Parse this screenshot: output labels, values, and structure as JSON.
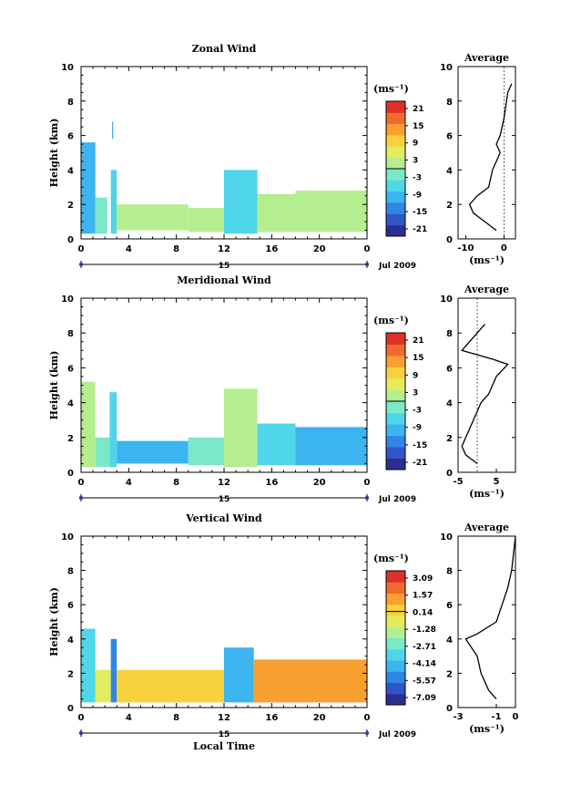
{
  "figure": {
    "x_axis_label": "Local Time",
    "date_label": "Jul 2009",
    "day_marker": "15",
    "y_axis_label": "Height (km)",
    "unit_label": "(ms⁻¹)",
    "average_title": "Average",
    "x_ticks": [
      "0",
      "4",
      "8",
      "12",
      "16",
      "20",
      "0"
    ],
    "y_ticks": [
      "0",
      "2",
      "4",
      "6",
      "8",
      "10"
    ]
  },
  "colorbar_colors": [
    "#2b2f8f",
    "#2f55c8",
    "#2f86e6",
    "#3bb4f0",
    "#4fd6e8",
    "#7be8c8",
    "#b4ee8e",
    "#e2ec5c",
    "#f8d23c",
    "#f8a030",
    "#f06a2e",
    "#e03128"
  ],
  "chart_data": [
    {
      "type": "heatmap",
      "title": "Zonal Wind",
      "xlabel": "",
      "ylabel": "Height (km)",
      "xlim": [
        0,
        24
      ],
      "ylim": [
        0,
        10
      ],
      "colorbar_unit": "(ms⁻¹)",
      "colorbar_ticks": [
        "21",
        "15",
        "9",
        "3",
        "-3",
        "-9",
        "-15",
        "-21"
      ],
      "colorbar_range": [
        -21,
        21
      ],
      "blocks": [
        {
          "t0": 0.0,
          "t1": 1.2,
          "h0": 0.3,
          "h1": 5.6,
          "v": -8
        },
        {
          "t0": 1.2,
          "t1": 2.2,
          "h0": 0.3,
          "h1": 2.4,
          "v": -2
        },
        {
          "t0": 2.5,
          "t1": 3.0,
          "h0": 0.3,
          "h1": 4.0,
          "v": -6
        },
        {
          "t0": 2.6,
          "t1": 2.7,
          "h0": 5.8,
          "h1": 6.8,
          "v": -9
        },
        {
          "t0": 3.0,
          "t1": 9.0,
          "h0": 0.5,
          "h1": 2.0,
          "v": 1
        },
        {
          "t0": 9.0,
          "t1": 12.0,
          "h0": 0.4,
          "h1": 1.8,
          "v": 0
        },
        {
          "t0": 12.0,
          "t1": 14.8,
          "h0": 0.3,
          "h1": 4.0,
          "v": -4
        },
        {
          "t0": 14.8,
          "t1": 18.0,
          "h0": 0.4,
          "h1": 2.6,
          "v": 2
        },
        {
          "t0": 18.0,
          "t1": 24.0,
          "h0": 0.4,
          "h1": 2.8,
          "v": 3
        }
      ],
      "average": {
        "xlim": [
          -12,
          3
        ],
        "xticks": [
          "-10",
          "0"
        ],
        "x": [
          -2,
          -5,
          -8,
          -9,
          -7,
          -4,
          -3,
          -1,
          -2,
          -1,
          0,
          1,
          2
        ],
        "h": [
          0.5,
          1.0,
          1.5,
          2.0,
          2.5,
          3.0,
          4.0,
          5.0,
          5.5,
          6.0,
          7.0,
          8.5,
          9.0
        ]
      }
    },
    {
      "type": "heatmap",
      "title": "Meridional Wind",
      "xlabel": "",
      "ylabel": "Height (km)",
      "xlim": [
        0,
        24
      ],
      "ylim": [
        0,
        10
      ],
      "colorbar_unit": "(ms⁻¹)",
      "colorbar_ticks": [
        "21",
        "15",
        "9",
        "3",
        "-3",
        "-9",
        "-15",
        "-21"
      ],
      "colorbar_range": [
        -21,
        21
      ],
      "blocks": [
        {
          "t0": 0.0,
          "t1": 1.2,
          "h0": 0.3,
          "h1": 5.2,
          "v": 0
        },
        {
          "t0": 1.2,
          "t1": 2.4,
          "h0": 0.3,
          "h1": 2.0,
          "v": -3
        },
        {
          "t0": 2.4,
          "t1": 3.0,
          "h0": 0.3,
          "h1": 4.6,
          "v": -5
        },
        {
          "t0": 3.0,
          "t1": 9.0,
          "h0": 0.5,
          "h1": 1.8,
          "v": -9
        },
        {
          "t0": 9.0,
          "t1": 12.0,
          "h0": 0.4,
          "h1": 2.0,
          "v": -3
        },
        {
          "t0": 12.0,
          "t1": 14.8,
          "h0": 0.3,
          "h1": 4.8,
          "v": 0
        },
        {
          "t0": 14.8,
          "t1": 18.0,
          "h0": 0.4,
          "h1": 2.8,
          "v": -7
        },
        {
          "t0": 18.0,
          "t1": 24.0,
          "h0": 0.4,
          "h1": 2.6,
          "v": -9
        }
      ],
      "average": {
        "xlim": [
          -5,
          10
        ],
        "xticks": [
          "-5",
          "5"
        ],
        "x": [
          0,
          -3,
          -4,
          -3,
          -1,
          1,
          3,
          5,
          8,
          4,
          -4,
          2
        ],
        "h": [
          0.5,
          1.0,
          1.5,
          2.0,
          3.0,
          4.0,
          4.5,
          5.5,
          6.2,
          6.5,
          7.0,
          8.5
        ]
      }
    },
    {
      "type": "heatmap",
      "title": "Vertical Wind",
      "xlabel": "Local Time",
      "ylabel": "Height (km)",
      "xlim": [
        0,
        24
      ],
      "ylim": [
        0,
        10
      ],
      "colorbar_unit": "(ms⁻¹)",
      "colorbar_ticks": [
        "3.09",
        "1.57",
        "0.14",
        "-1.28",
        "-2.71",
        "-4.14",
        "-5.57",
        "-7.09"
      ],
      "colorbar_range": [
        -7.09,
        3.09
      ],
      "blocks": [
        {
          "t0": 0.0,
          "t1": 1.2,
          "h0": 0.3,
          "h1": 4.6,
          "v": -3.0
        },
        {
          "t0": 1.2,
          "t1": 2.5,
          "h0": 0.3,
          "h1": 2.2,
          "v": -0.6
        },
        {
          "t0": 2.5,
          "t1": 3.0,
          "h0": 0.3,
          "h1": 4.0,
          "v": -5.0
        },
        {
          "t0": 3.0,
          "t1": 12.0,
          "h0": 0.3,
          "h1": 2.2,
          "v": 0.4
        },
        {
          "t0": 12.0,
          "t1": 14.5,
          "h0": 0.3,
          "h1": 3.5,
          "v": -4.5
        },
        {
          "t0": 14.5,
          "t1": 24.0,
          "h0": 0.3,
          "h1": 2.8,
          "v": 0.6
        }
      ],
      "average": {
        "xlim": [
          -3,
          0
        ],
        "xticks": [
          "-3",
          "-1",
          "0"
        ],
        "x": [
          -1.0,
          -1.4,
          -1.8,
          -2.0,
          -2.6,
          -2.0,
          -1.0,
          -0.7,
          -0.4,
          -0.2,
          -0.1,
          0.0
        ],
        "h": [
          0.5,
          1.0,
          2.0,
          3.0,
          4.0,
          4.3,
          5.0,
          6.0,
          7.0,
          8.0,
          9.0,
          10.0
        ]
      }
    }
  ]
}
